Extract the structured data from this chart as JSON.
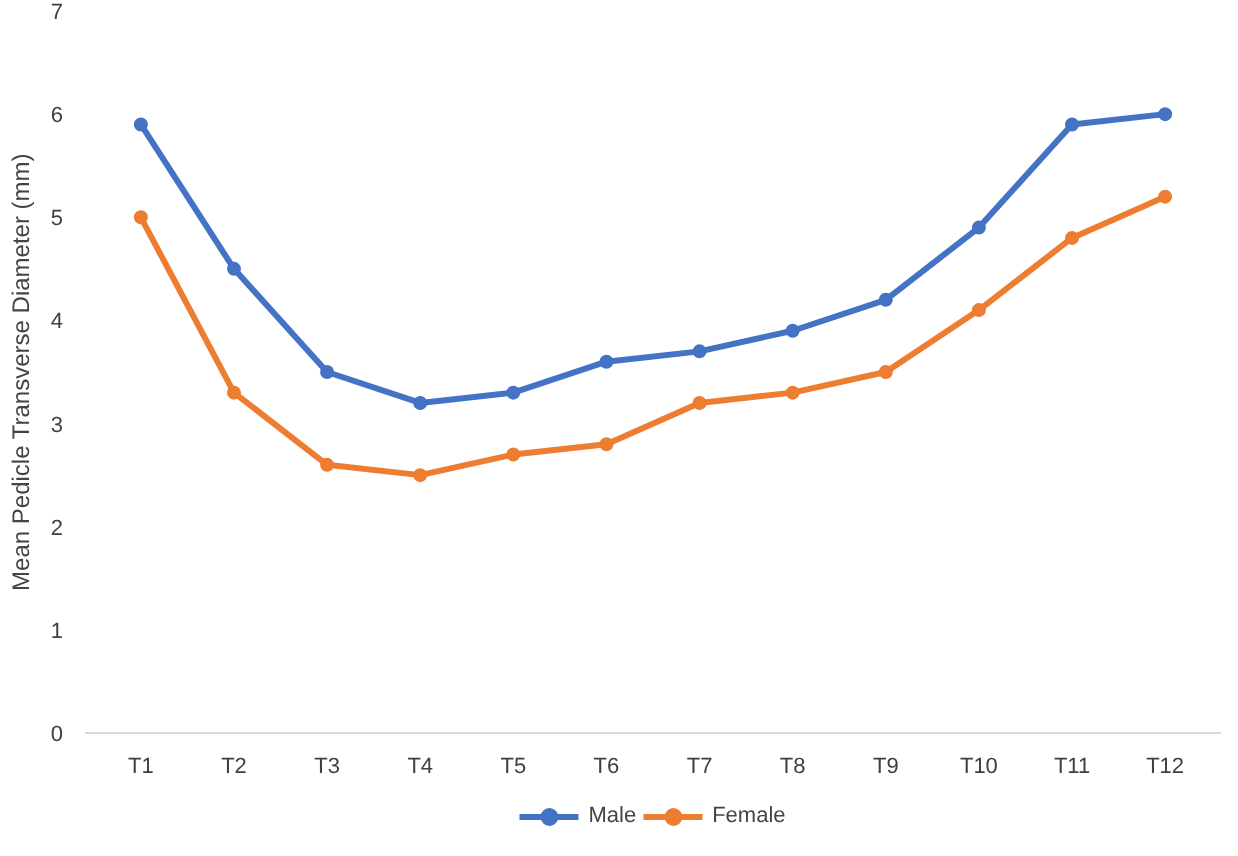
{
  "chart_data": {
    "type": "line",
    "ylabel": "Mean Pedicle Transverse Diameter (mm)",
    "categories": [
      "T1",
      "T2",
      "T3",
      "T4",
      "T5",
      "T6",
      "T7",
      "T8",
      "T9",
      "T10",
      "T11",
      "T12"
    ],
    "series": [
      {
        "name": "Male",
        "color": "#4472c4",
        "values": [
          5.9,
          4.5,
          3.5,
          3.2,
          3.3,
          3.6,
          3.7,
          3.9,
          4.2,
          4.9,
          5.9,
          6.0
        ]
      },
      {
        "name": "Female",
        "color": "#ed7d31",
        "values": [
          5.0,
          3.3,
          2.6,
          2.5,
          2.7,
          2.8,
          3.2,
          3.3,
          3.5,
          4.1,
          4.8,
          5.2
        ]
      }
    ],
    "ylim": [
      0,
      7
    ],
    "yticks": [
      0,
      1,
      2,
      3,
      4,
      5,
      6,
      7
    ],
    "grid": false,
    "legend": "bottom",
    "marker": "circle",
    "line_style": "solid"
  }
}
